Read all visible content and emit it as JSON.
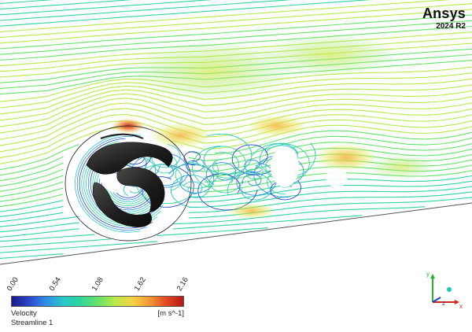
{
  "brand": {
    "name": "Ansys",
    "version": "2024 R2"
  },
  "legend": {
    "variable": "Velocity",
    "units": "[m s^-1]",
    "object": "Streamline 1",
    "ticks": [
      "0.00",
      "0.54",
      "1.08",
      "1.62",
      "2.16"
    ],
    "colormap": [
      "#1b1a8c",
      "#2b45c9",
      "#2f8fe8",
      "#28c7c9",
      "#2fd59c",
      "#64e26a",
      "#b6ea4a",
      "#f2d444",
      "#f29a36",
      "#e24a22",
      "#b71a14"
    ]
  },
  "axes": {
    "x": "x",
    "y": "y",
    "z": "z"
  },
  "colors": {
    "x_axis": "#d6261c",
    "y_axis": "#28b22e",
    "z_axis": "#1b3fd0",
    "origin": "#1cc6c6"
  }
}
